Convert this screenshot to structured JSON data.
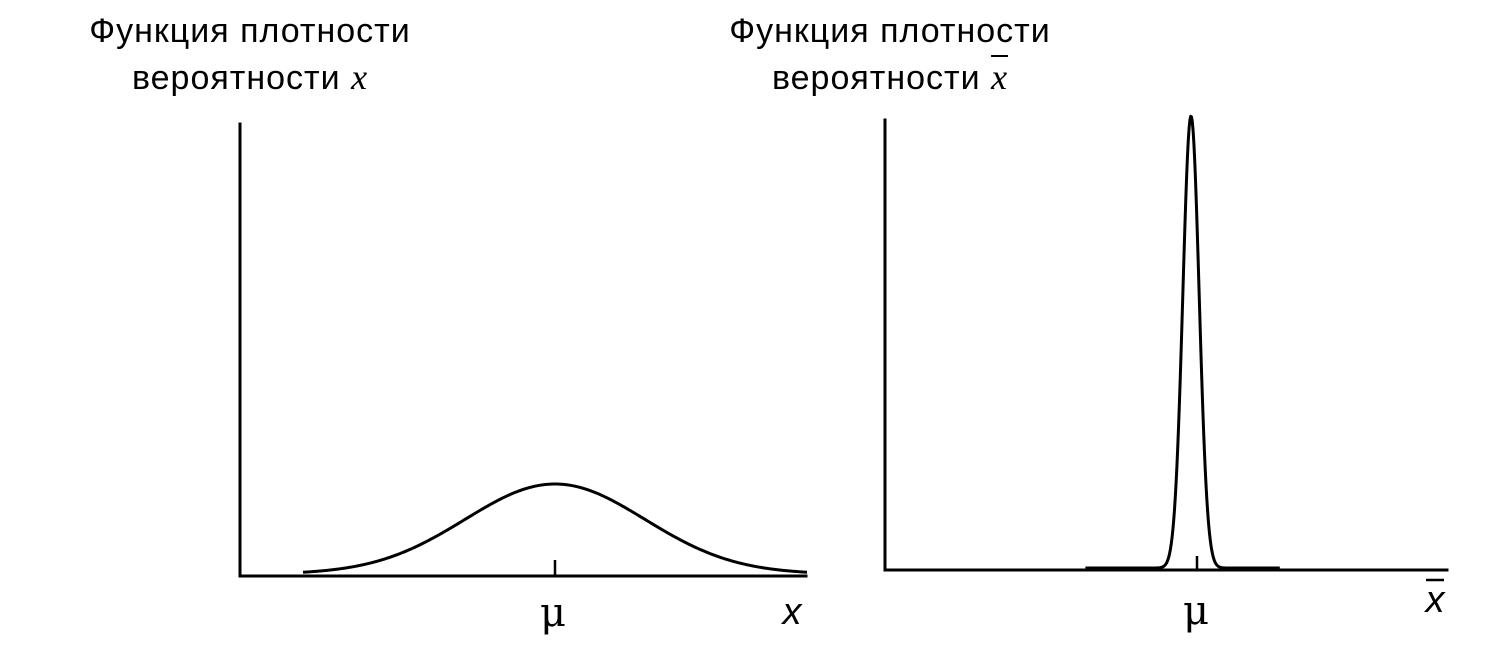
{
  "chart_data": [
    {
      "type": "line",
      "title_line1": "Функция плотности",
      "title_line2": "вероятности",
      "title_var": "x",
      "xlabel": "x",
      "ylabel": "",
      "tick_labels": [
        "μ"
      ],
      "grid": false,
      "series": [
        {
          "distribution": "normal",
          "mean": 0,
          "std": 1,
          "x_range": [
            -2.8,
            2.8
          ],
          "peak_fraction_of_axis_height": 0.2
        }
      ]
    },
    {
      "type": "line",
      "title_line1": "Функция плотности",
      "title_line2": "вероятности",
      "title_var": "x",
      "title_var_overline": true,
      "xlabel": "x",
      "xlabel_overline": true,
      "ylabel": "",
      "tick_labels": [
        "μ"
      ],
      "grid": false,
      "series": [
        {
          "distribution": "normal",
          "mean": 0,
          "std": 0.34,
          "x_range": [
            -4.4,
            3.7
          ],
          "peak_fraction_of_axis_height": 1.0
        }
      ]
    }
  ]
}
